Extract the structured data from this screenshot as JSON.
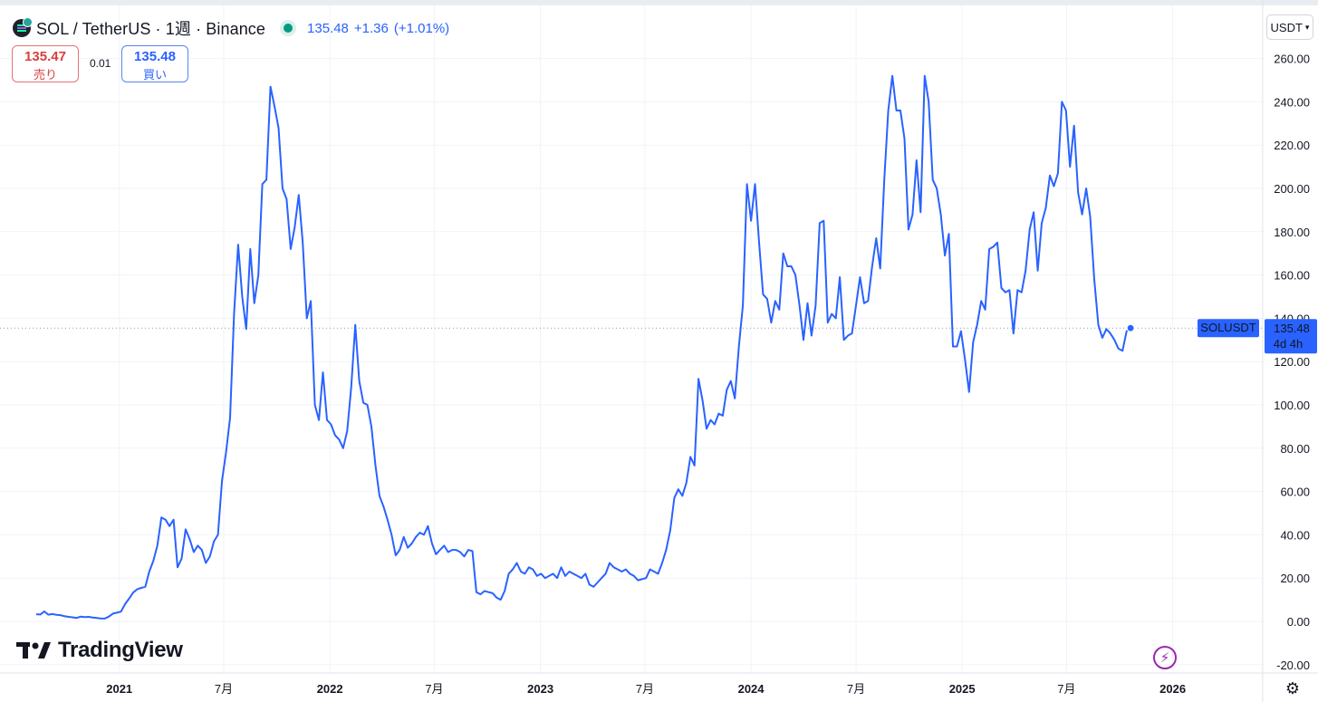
{
  "header": {
    "symbol_title": "SOL / TetherUS · 1週 · Binance",
    "last_price": "135.48",
    "change": "+1.36",
    "change_pct": "(+1.01%)"
  },
  "trade": {
    "sell_price": "135.47",
    "sell_label": "売り",
    "spread": "0.01",
    "buy_price": "135.48",
    "buy_label": "買い"
  },
  "currency_button": "USDT",
  "branding": {
    "logo_text": "TradingView"
  },
  "price_tag": {
    "symbol": "SOLUSDT",
    "price": "135.48",
    "countdown": "4d 4h"
  },
  "colors": {
    "line": "#2962ff",
    "grid": "#f0f3fa",
    "sell": "#d93f3f",
    "buy": "#2962ff",
    "tag_bg": "#2962ff"
  },
  "icons": {
    "flash": "lightning-icon",
    "settings": "gear-icon"
  },
  "chart_data": {
    "type": "line",
    "series": [
      {
        "values": [
          3.3,
          3.2,
          4.6,
          3.1,
          3.4,
          3.0,
          2.9,
          2.4,
          2.1,
          1.9,
          1.6,
          2.2,
          2.0,
          2.1,
          1.8,
          1.6,
          1.4,
          1.3,
          2.2,
          3.6,
          4.0,
          4.5,
          8.0,
          10.5,
          13.3,
          14.8,
          15.5,
          16.0,
          23.0,
          28.0,
          35.0,
          48.0,
          47.0,
          44.0,
          47.0,
          25.0,
          29.0,
          42.5,
          38.0,
          32.0,
          35.0,
          33.0,
          27.0,
          30.0,
          37.0,
          40.0,
          65.0,
          78.0,
          94.0,
          142.0,
          174.0,
          150.0,
          135.0,
          172.0,
          147.0,
          160.0,
          202.0,
          204.0,
          247.0,
          238.0,
          228.0,
          200.0,
          195.0,
          172.0,
          182.0,
          197.0,
          175.0,
          140.0,
          148.0,
          100.0,
          93.0,
          115.0,
          93.0,
          91.0,
          86.0,
          84.0,
          80.0,
          88.0,
          108.0,
          137.0,
          111.0,
          101.0,
          100.0,
          90.0,
          72.0,
          58.0,
          53.0,
          47.0,
          40.0,
          30.5,
          33.0,
          39.0,
          34.0,
          36.0,
          39.0,
          41.0,
          40.0,
          44.0,
          36.0,
          31.0,
          33.0,
          35.0,
          32.0,
          33.0,
          33.0,
          32.0,
          30.0,
          33.0,
          32.5,
          13.5,
          12.5,
          14.0,
          13.5,
          13.0,
          11.0,
          10.0,
          14.0,
          22.0,
          24.0,
          27.0,
          23.0,
          22.0,
          25.0,
          24.0,
          21.0,
          22.0,
          20.0,
          21.0,
          22.0,
          20.0,
          25.0,
          21.0,
          23.0,
          22.0,
          21.0,
          20.0,
          22.0,
          17.0,
          16.0,
          18.0,
          20.0,
          22.0,
          27.0,
          25.0,
          24.0,
          23.0,
          24.0,
          22.0,
          21.0,
          19.0,
          19.5,
          20.0,
          24.0,
          23.0,
          22.0,
          27.0,
          33.0,
          42.0,
          57.0,
          61.0,
          58.0,
          64.0,
          76.0,
          72.0,
          112.0,
          102.0,
          89.0,
          93.0,
          91.0,
          96.0,
          95.0,
          107.0,
          111.0,
          103.0,
          127.0,
          146.0,
          202.0,
          185.0,
          202.0,
          175.0,
          151.0,
          149.0,
          138.0,
          148.0,
          144.0,
          170.0,
          164.0,
          164.0,
          160.0,
          146.0,
          130.0,
          147.0,
          132.0,
          146.0,
          184.0,
          185.0,
          138.0,
          142.0,
          140.0,
          159.0,
          130.0,
          132.0,
          133.0,
          146.0,
          159.0,
          147.0,
          148.0,
          164.0,
          177.0,
          163.0,
          204.0,
          236.0,
          252.0,
          236.0,
          236.0,
          223.0,
          181.0,
          188.0,
          213.0,
          189.0,
          252.0,
          240.0,
          204.0,
          200.0,
          188.0,
          169.0,
          179.0,
          127.0,
          127.0,
          134.0,
          121.0,
          106.0,
          129.0,
          137.0,
          148.0,
          144.0,
          172.0,
          173.0,
          175.0,
          154.0,
          152.0,
          153.0,
          133.0,
          153.0,
          152.0,
          162.0,
          181.0,
          189.0,
          162.0,
          184.0,
          191.0,
          206.0,
          201.0,
          207.0,
          240.0,
          236.0,
          210.0,
          229.0,
          198.0,
          188.0,
          200.0,
          187.0,
          158.0,
          137.0,
          131.0,
          135.0,
          133.0,
          130.0,
          126.0,
          125.0,
          134.0,
          135.48
        ]
      }
    ],
    "x_start": "2020-08-10",
    "x_interval": "1 week",
    "x_tick_labels": [
      "2021",
      "7月",
      "2022",
      "7月",
      "2023",
      "7月",
      "2024",
      "7月",
      "2025",
      "7月",
      "2026"
    ],
    "y_tick_labels": [
      "-20.00",
      "0.00",
      "20.00",
      "40.00",
      "60.00",
      "80.00",
      "100.00",
      "120.00",
      "140.00",
      "160.00",
      "180.00",
      "200.00",
      "220.00",
      "240.00",
      "260.00"
    ],
    "ylim": [
      -25,
      270
    ],
    "grid": true,
    "last_value_line": 135.48
  }
}
